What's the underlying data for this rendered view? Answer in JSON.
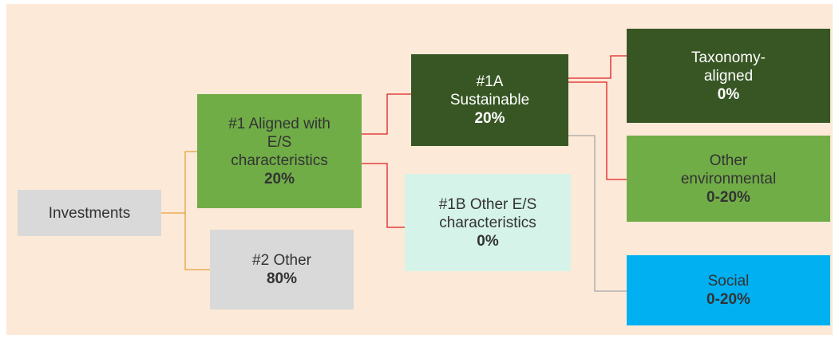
{
  "nodes": [
    {
      "lines": [
        "Investments"
      ]
    },
    {
      "lines": [
        "#1 Aligned with",
        "E/S",
        "characteristics"
      ],
      "value": "20%"
    },
    {
      "lines": [
        "#2 Other"
      ],
      "value": "80%"
    },
    {
      "lines": [
        "#1A",
        "Sustainable"
      ],
      "value": "20%"
    },
    {
      "lines": [
        "#1B Other E/S",
        "characteristics"
      ],
      "value": "0%"
    },
    {
      "lines": [
        "Taxonomy-",
        "aligned"
      ],
      "value": "0%"
    },
    {
      "lines": [
        "Other",
        "environmental"
      ],
      "value": "0-20%"
    },
    {
      "lines": [
        "Social"
      ],
      "value": "0-20%"
    }
  ]
}
